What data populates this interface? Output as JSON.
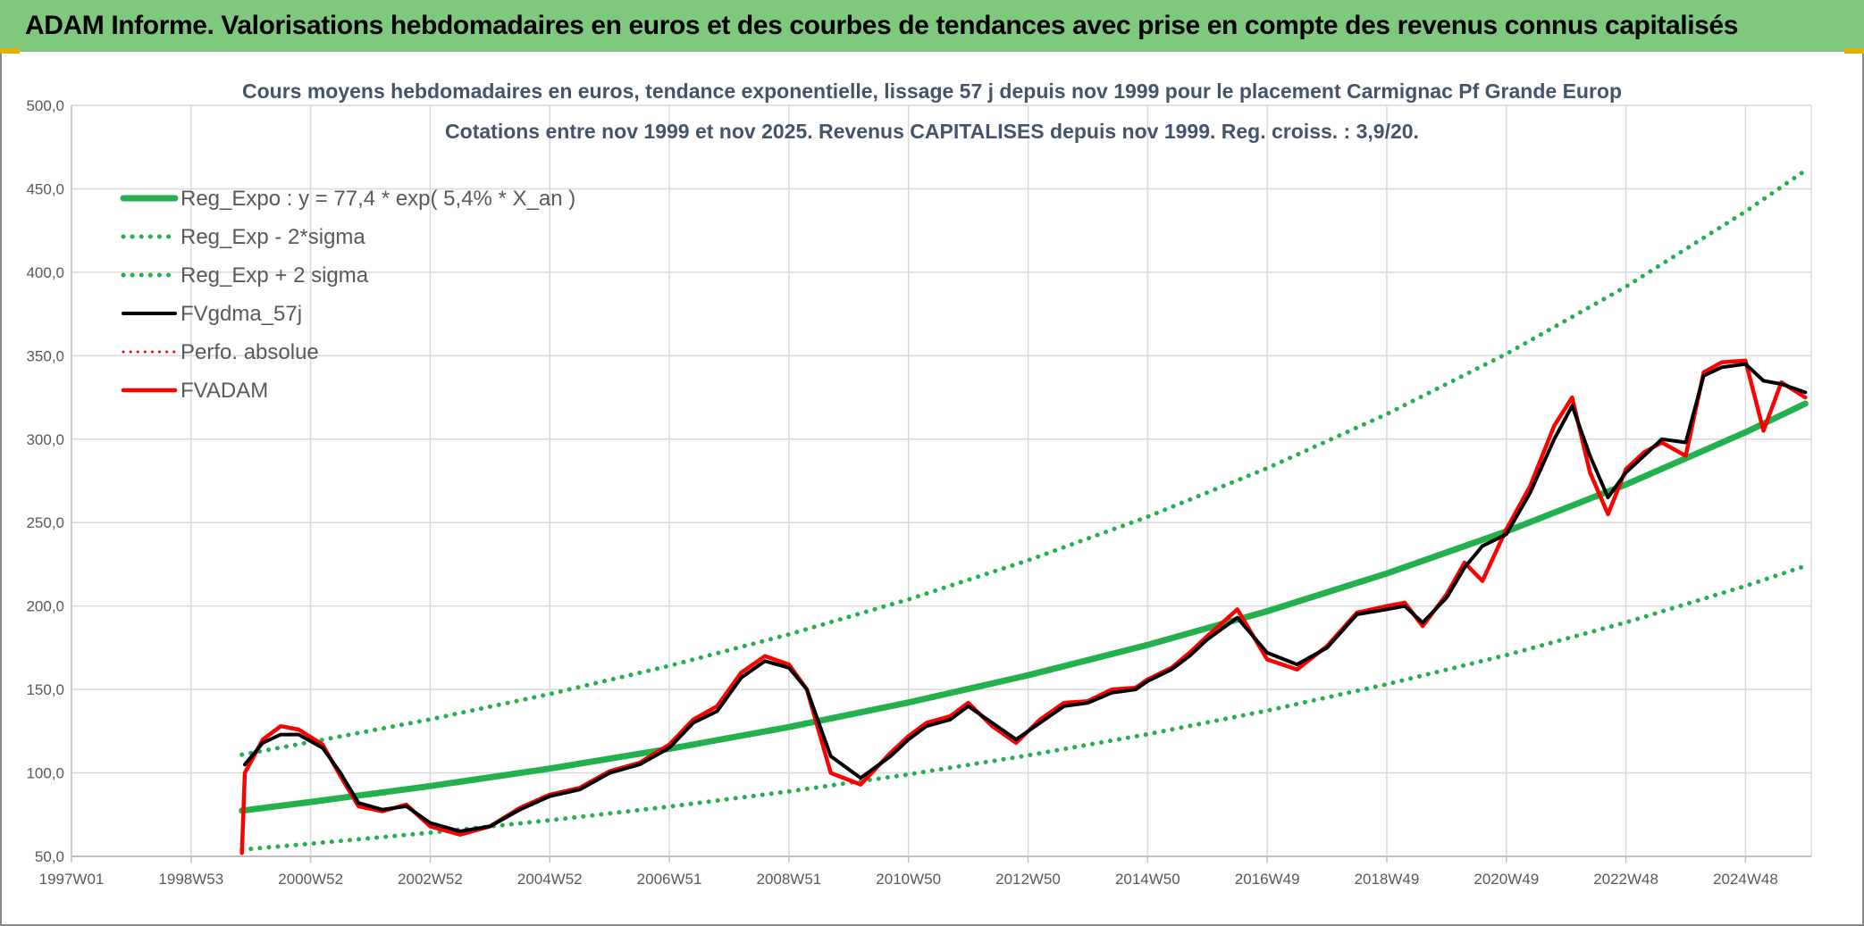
{
  "header": {
    "title": "ADAM Informe. Valorisations hebdomadaires en euros et des courbes de tendances avec prise en compte des revenus connus capitalisés"
  },
  "colors": {
    "banner": "#7fc97f",
    "regression": "#22b14c",
    "sigma_bands": "#22b14c",
    "moving_average": "#000000",
    "absolute_perf": "#ff0000",
    "fvadam": "#ff0000"
  },
  "chart_data": {
    "type": "line",
    "title_lines": [
      "Cours moyens hebdomadaires en euros, tendance exponentielle, lissage 57 j depuis nov 1999 pour le placement Carmignac Pf Grande Europ",
      "Cotations entre nov 1999 et nov 2025. Revenus CAPITALISES depuis nov 1999. Reg. croiss. : 3,9/20."
    ],
    "xlabel": "",
    "ylabel": "",
    "x_range": [
      1997.0,
      2026.1
    ],
    "ylim": [
      50,
      500
    ],
    "y_ticks": [
      "500,0",
      "450,0",
      "400,0",
      "350,0",
      "300,0",
      "250,0",
      "200,0",
      "150,0",
      "100,0",
      "50,0"
    ],
    "y_tick_values": [
      500,
      450,
      400,
      350,
      300,
      250,
      200,
      150,
      100,
      50
    ],
    "x_ticks": [
      {
        "label": "1997W01",
        "x": 1997.0
      },
      {
        "label": "1998W53",
        "x": 1999.0
      },
      {
        "label": "2000W52",
        "x": 2001.0
      },
      {
        "label": "2002W52",
        "x": 2003.0
      },
      {
        "label": "2004W52",
        "x": 2005.0
      },
      {
        "label": "2006W51",
        "x": 2007.0
      },
      {
        "label": "2008W51",
        "x": 2009.0
      },
      {
        "label": "2010W50",
        "x": 2011.0
      },
      {
        "label": "2012W50",
        "x": 2013.0
      },
      {
        "label": "2014W50",
        "x": 2015.0
      },
      {
        "label": "2016W49",
        "x": 2017.0
      },
      {
        "label": "2018W49",
        "x": 2019.0
      },
      {
        "label": "2020W49",
        "x": 2021.0
      },
      {
        "label": "2022W48",
        "x": 2023.0
      },
      {
        "label": "2024W48",
        "x": 2025.0
      }
    ],
    "grid": true,
    "legend_position": "top-left",
    "legend": [
      "Reg_Expo : y = 77,4 * exp( 5,4% *  X_an )",
      "Reg_Exp - 2*sigma",
      "Reg_Exp + 2 sigma",
      "FVgdma_57j",
      "Perfo. absolue",
      "FVADAM"
    ],
    "series": [
      {
        "name": "Reg_Expo : y = 77,4 * exp( 5,4% *  X_an )",
        "style": "solid-thick",
        "x": [
          1999.85,
          2001,
          2003,
          2005,
          2007,
          2009,
          2011,
          2013,
          2015,
          2017,
          2019,
          2021,
          2023,
          2025,
          2026.0
        ],
        "values": [
          77.4,
          82.6,
          92.1,
          102.6,
          114.4,
          127.5,
          142.2,
          158.5,
          176.7,
          196.9,
          219.5,
          244.7,
          272.8,
          304.1,
          321.3
        ]
      },
      {
        "name": "Reg_Exp - 2*sigma",
        "style": "dotted",
        "x": [
          1999.85,
          2001,
          2003,
          2005,
          2007,
          2009,
          2011,
          2013,
          2015,
          2017,
          2019,
          2021,
          2023,
          2025,
          2026.0
        ],
        "values": [
          54.0,
          57.6,
          64.2,
          71.6,
          79.8,
          88.9,
          99.1,
          110.5,
          123.2,
          137.3,
          153.1,
          170.6,
          190.2,
          212.0,
          224.0
        ]
      },
      {
        "name": "Reg_Exp + 2 sigma",
        "style": "dotted",
        "x": [
          1999.85,
          2001,
          2003,
          2005,
          2007,
          2009,
          2011,
          2013,
          2015,
          2017,
          2019,
          2021,
          2023,
          2025,
          2026.0
        ],
        "values": [
          110.9,
          118.5,
          132.1,
          147.3,
          164.2,
          183.0,
          204.0,
          227.4,
          253.5,
          282.6,
          315.0,
          351.1,
          391.4,
          436.4,
          461.0
        ]
      },
      {
        "name": "FVgdma_57j",
        "style": "solid",
        "x": [
          1999.9,
          2000.2,
          2000.5,
          2000.8,
          2001.2,
          2001.5,
          2001.8,
          2002.2,
          2002.6,
          2003.0,
          2003.5,
          2004.0,
          2004.5,
          2005.0,
          2005.5,
          2006.0,
          2006.5,
          2007.0,
          2007.4,
          2007.8,
          2008.2,
          2008.6,
          2009.0,
          2009.3,
          2009.7,
          2010.2,
          2010.7,
          2011.0,
          2011.3,
          2011.7,
          2012.0,
          2012.4,
          2012.8,
          2013.2,
          2013.6,
          2014.0,
          2014.4,
          2014.8,
          2015.0,
          2015.4,
          2015.7,
          2016.0,
          2016.5,
          2017.0,
          2017.5,
          2018.0,
          2018.5,
          2019.0,
          2019.3,
          2019.6,
          2020.0,
          2020.3,
          2020.6,
          2021.0,
          2021.4,
          2021.8,
          2022.1,
          2022.4,
          2022.7,
          2023.0,
          2023.3,
          2023.6,
          2024.0,
          2024.3,
          2024.6,
          2025.0,
          2025.3,
          2025.6,
          2026.0
        ],
        "values": [
          105,
          118,
          123,
          123,
          115,
          100,
          82,
          78,
          80,
          70,
          65,
          68,
          78,
          86,
          90,
          100,
          105,
          115,
          130,
          137,
          157,
          167,
          163,
          150,
          110,
          97,
          110,
          120,
          128,
          132,
          140,
          130,
          120,
          130,
          140,
          142,
          148,
          150,
          155,
          162,
          170,
          180,
          193,
          172,
          165,
          175,
          195,
          198,
          200,
          190,
          205,
          223,
          236,
          243,
          268,
          300,
          320,
          290,
          265,
          280,
          290,
          300,
          298,
          338,
          343,
          345,
          335,
          333,
          328
        ]
      },
      {
        "name": "Perfo. absolue",
        "style": "dotted",
        "x": [
          1999.9,
          2000.2,
          2000.5,
          2000.8,
          2001.2,
          2001.5,
          2001.8,
          2002.2,
          2002.6,
          2003.0,
          2003.5,
          2004.0,
          2004.5,
          2005.0,
          2005.5,
          2006.0,
          2006.5,
          2007.0,
          2007.4,
          2007.8,
          2008.2,
          2008.6,
          2009.0,
          2009.3,
          2009.7,
          2010.2,
          2010.7,
          2011.0,
          2011.3,
          2011.7,
          2012.0,
          2012.4,
          2012.8,
          2013.2,
          2013.6,
          2014.0,
          2014.4,
          2014.8,
          2015.0,
          2015.4,
          2015.7,
          2016.0,
          2016.5,
          2017.0,
          2017.5,
          2018.0,
          2018.5,
          2019.0,
          2019.3,
          2019.6,
          2020.0,
          2020.3,
          2020.6,
          2021.0,
          2021.4,
          2021.8,
          2022.1,
          2022.4,
          2022.7,
          2023.0,
          2023.3,
          2023.6,
          2024.0,
          2024.3,
          2024.6,
          2025.0,
          2025.3,
          2025.6,
          2026.0
        ],
        "values": [
          100,
          120,
          128,
          126,
          117,
          98,
          80,
          77,
          81,
          68,
          63,
          68,
          79,
          87,
          91,
          101,
          106,
          117,
          132,
          140,
          160,
          170,
          165,
          150,
          100,
          93,
          112,
          122,
          130,
          134,
          142,
          128,
          118,
          132,
          142,
          143,
          150,
          151,
          156,
          163,
          172,
          182,
          198,
          168,
          162,
          176,
          196,
          200,
          202,
          188,
          207,
          226,
          215,
          246,
          272,
          308,
          325,
          280,
          255,
          282,
          292,
          298,
          290,
          340,
          346,
          347,
          305,
          334,
          325
        ]
      },
      {
        "name": "FVADAM",
        "style": "solid-thick",
        "x": [
          1999.85,
          1999.9,
          2000.2,
          2000.5,
          2000.8,
          2001.2,
          2001.5,
          2001.8,
          2002.2,
          2002.6,
          2003.0,
          2003.5,
          2004.0,
          2004.5,
          2005.0,
          2005.5,
          2006.0,
          2006.5,
          2007.0,
          2007.4,
          2007.8,
          2008.2,
          2008.6,
          2009.0,
          2009.3,
          2009.7,
          2010.2,
          2010.7,
          2011.0,
          2011.3,
          2011.7,
          2012.0,
          2012.4,
          2012.8,
          2013.2,
          2013.6,
          2014.0,
          2014.4,
          2014.8,
          2015.0,
          2015.4,
          2015.7,
          2016.0,
          2016.5,
          2017.0,
          2017.5,
          2018.0,
          2018.5,
          2019.0,
          2019.3,
          2019.6,
          2020.0,
          2020.3,
          2020.6,
          2021.0,
          2021.4,
          2021.8,
          2022.1,
          2022.4,
          2022.7,
          2023.0,
          2023.3,
          2023.6,
          2024.0,
          2024.3,
          2024.6,
          2025.0,
          2025.3,
          2025.6,
          2026.0
        ],
        "values": [
          52,
          100,
          120,
          128,
          126,
          117,
          98,
          80,
          77,
          81,
          68,
          63,
          68,
          79,
          87,
          91,
          101,
          106,
          117,
          132,
          140,
          160,
          170,
          165,
          150,
          100,
          93,
          112,
          122,
          130,
          134,
          142,
          128,
          118,
          132,
          142,
          143,
          150,
          151,
          156,
          163,
          172,
          182,
          198,
          168,
          162,
          176,
          196,
          200,
          202,
          188,
          207,
          226,
          215,
          246,
          272,
          308,
          325,
          280,
          255,
          282,
          292,
          298,
          290,
          340,
          346,
          347,
          305,
          334,
          325
        ]
      }
    ]
  }
}
